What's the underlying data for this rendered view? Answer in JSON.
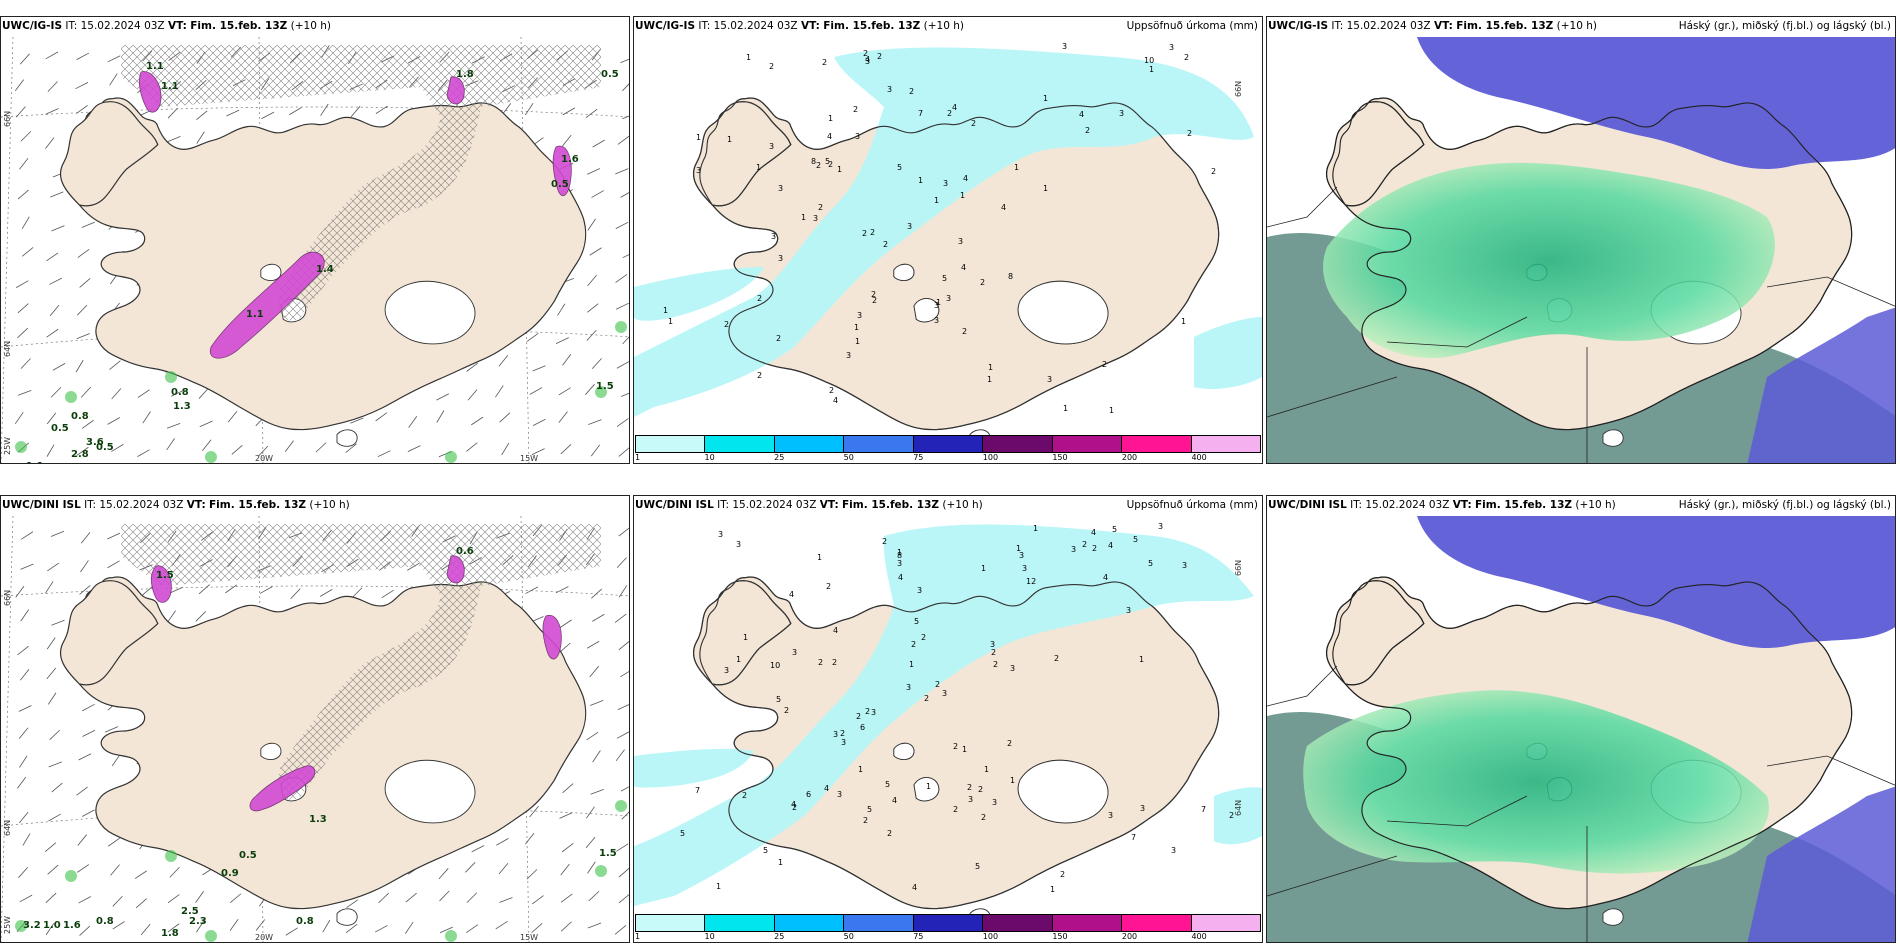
{
  "panels": [
    {
      "id": "top-left",
      "model": "UWC/IG-IS",
      "it_label": "IT:",
      "init_time": "15.02.2024 03Z",
      "vt_label": "VT:",
      "valid_time": "Fim. 15.feb. 13Z",
      "lead": "(+10 h)",
      "right_title": "",
      "lat_labels": [
        "66N",
        "64N"
      ],
      "lon_labels": [
        "25W",
        "20W",
        "15W"
      ],
      "numbers": [
        "1.8",
        "1.1",
        "1.1",
        "1.4",
        "1.1",
        "0.8",
        "1.3",
        "0.8",
        "0.5",
        "3.6",
        "2.8",
        "0.5",
        "1.1",
        "1.5",
        "0.5",
        "0.5",
        "1.6"
      ]
    },
    {
      "id": "top-middle",
      "model": "UWC/IG-IS",
      "it_label": "IT:",
      "init_time": "15.02.2024 03Z",
      "vt_label": "VT:",
      "valid_time": "Fim. 15.feb. 13Z",
      "lead": "(+10 h)",
      "right_title": "Uppsöfnuð úrkoma (mm)",
      "lat_labels": [
        "66N"
      ],
      "numbers": [
        "2",
        "1",
        "1",
        "2",
        "1",
        "1",
        "3",
        "2",
        "2",
        "3",
        "3",
        "1",
        "3",
        "2",
        "3",
        "3",
        "2",
        "2",
        "1",
        "2",
        "2",
        "2",
        "2",
        "3",
        "4",
        "2",
        "3",
        "4",
        "1",
        "4",
        "5",
        "4",
        "7",
        "10",
        "4",
        "8",
        "1",
        "3",
        "2",
        "3",
        "2",
        "2",
        "1",
        "2",
        "5",
        "3",
        "1",
        "2",
        "2",
        "3",
        "1",
        "3",
        "2",
        "1",
        "4",
        "3",
        "1",
        "2",
        "3",
        "2",
        "8",
        "2",
        "4",
        "5",
        "3",
        "3",
        "2",
        "2",
        "1",
        "1",
        "1",
        "1",
        "1",
        "2",
        "3",
        "3",
        "1",
        "1",
        "4",
        "3",
        "1",
        "3",
        "2",
        "1",
        "1",
        "2",
        "2",
        "1"
      ]
    },
    {
      "id": "top-right",
      "model": "UWC/IG-IS",
      "it_label": "IT:",
      "init_time": "15.02.2024 03Z",
      "vt_label": "VT:",
      "valid_time": "Fim. 15.feb. 13Z",
      "lead": "(+10 h)",
      "right_title": "Háský (gr.), miðský (fj.bl.) og lágský (bl.)",
      "numbers": []
    },
    {
      "id": "bottom-left",
      "model": "UWC/DINI ISL",
      "it_label": "IT:",
      "init_time": "15.02.2024 03Z",
      "vt_label": "VT:",
      "valid_time": "Fim. 15.feb. 13Z",
      "lead": "(+10 h)",
      "right_title": "",
      "lat_labels": [
        "66N",
        "64N"
      ],
      "lon_labels": [
        "25W",
        "20W",
        "15W"
      ],
      "numbers": [
        "0.6",
        "1.5",
        "0.5",
        "0.9",
        "1.5",
        "3.2",
        "1.0",
        "1.6",
        "0.8",
        "2.5",
        "2.3",
        "1.8",
        "0.8",
        "1.3"
      ]
    },
    {
      "id": "bottom-middle",
      "model": "UWC/DINI ISL",
      "it_label": "IT:",
      "init_time": "15.02.2024 03Z",
      "vt_label": "VT:",
      "valid_time": "Fim. 15.feb. 13Z",
      "lead": "(+10 h)",
      "right_title": "Uppsöfnuð úrkoma (mm)",
      "lat_labels": [
        "66N",
        "64N"
      ],
      "numbers": [
        "3",
        "3",
        "3",
        "3",
        "1",
        "3",
        "3",
        "1",
        "3",
        "2",
        "2",
        "12",
        "2",
        "3",
        "3",
        "3",
        "1",
        "1",
        "4",
        "3",
        "2",
        "2",
        "2",
        "1",
        "1",
        "1",
        "1",
        "5",
        "4",
        "4",
        "3",
        "5",
        "8",
        "4",
        "5",
        "4",
        "5",
        "4",
        "1",
        "2",
        "2",
        "3",
        "2",
        "2",
        "3",
        "2",
        "5",
        "2",
        "1",
        "1",
        "2",
        "2",
        "2",
        "1",
        "2",
        "2",
        "1",
        "3",
        "3",
        "6",
        "2",
        "2",
        "2",
        "1",
        "4",
        "5",
        "2",
        "2",
        "2",
        "3",
        "3",
        "5",
        "3",
        "10",
        "6",
        "3",
        "4",
        "3",
        "2",
        "3",
        "4",
        "7",
        "3",
        "2",
        "1",
        "1",
        "1",
        "2",
        "2",
        "3",
        "2",
        "2",
        "5",
        "3",
        "7",
        "7",
        "5",
        "5",
        "4"
      ]
    },
    {
      "id": "bottom-right",
      "model": "UWC/DINI ISL",
      "it_label": "IT:",
      "init_time": "15.02.2024 03Z",
      "vt_label": "VT:",
      "valid_time": "Fim. 15.feb. 13Z",
      "lead": "(+10 h)",
      "right_title": "Háský (gr.), miðský (fj.bl.) og lágský (bl.)",
      "numbers": []
    }
  ],
  "colorbar": {
    "ticks": [
      "1",
      "10",
      "25",
      "50",
      "75",
      "100",
      "150",
      "200",
      "400"
    ],
    "colors": [
      "#c8fafa",
      "#00e5ee",
      "#00bfff",
      "#3a78f0",
      "#2323b8",
      "#6b0a6b",
      "#b0108a",
      "#ff1493",
      "#f5b0f0"
    ]
  },
  "colors": {
    "land": "#f3e6d6",
    "land_line": "#333333",
    "precip_light": "#b6f6f8",
    "snow_pink": "#d24ad2",
    "green_echo": "#3ec24a",
    "high_cloud": "#3cc48a",
    "mid_cloud": "#5c5cd6",
    "low_cloud_grey": "#5a8a80"
  }
}
